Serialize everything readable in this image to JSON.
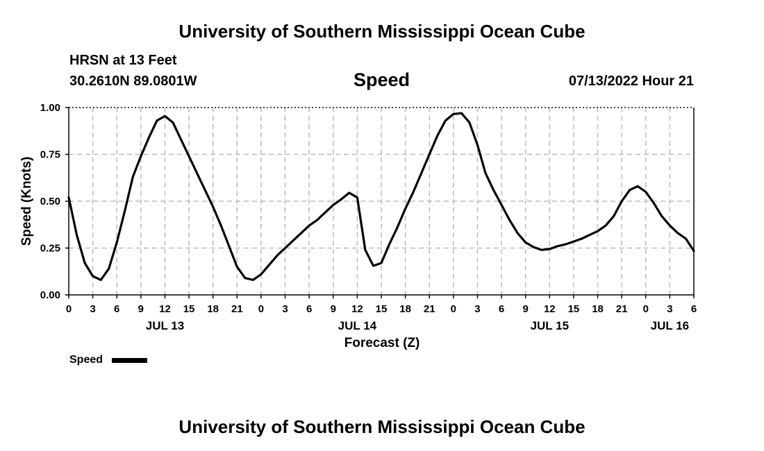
{
  "header": {
    "title": "University of Southern Mississippi Ocean Cube",
    "station": "HRSN at 13 Feet",
    "coords": "30.2610N  89.0801W",
    "chart_title": "Speed",
    "datetime": "07/13/2022 Hour 21"
  },
  "footer": {
    "title": "University of Southern Mississippi Ocean Cube"
  },
  "legend": {
    "label": "Speed",
    "position": "bottom-left"
  },
  "colors": {
    "line": "#000000",
    "grid": "#bbbbbb",
    "background": "#ffffff"
  },
  "chart_data": {
    "type": "line",
    "title": "Speed",
    "xlabel": "Forecast (Z)",
    "ylabel": "Speed (Knots)",
    "ylim": [
      0,
      1
    ],
    "xlim": [
      0,
      78
    ],
    "x_ticks": [
      0,
      3,
      6,
      9,
      12,
      15,
      18,
      21,
      24,
      27,
      30,
      33,
      36,
      39,
      42,
      45,
      48,
      51,
      54,
      57,
      60,
      63,
      66,
      69,
      72,
      75,
      78
    ],
    "x_tick_labels": [
      "0",
      "3",
      "6",
      "9",
      "12",
      "15",
      "18",
      "21",
      "0",
      "3",
      "6",
      "9",
      "12",
      "15",
      "18",
      "21",
      "0",
      "3",
      "6",
      "9",
      "12",
      "15",
      "18",
      "21",
      "0",
      "3",
      "6"
    ],
    "y_ticks": [
      0,
      0.25,
      0.5,
      0.75,
      1.0
    ],
    "y_tick_labels": [
      "0.00",
      "0.25",
      "0.50",
      "0.75",
      "1.00"
    ],
    "date_labels": [
      {
        "x": 12,
        "label": "JUL 13"
      },
      {
        "x": 36,
        "label": "JUL 14"
      },
      {
        "x": 60,
        "label": "JUL 15"
      },
      {
        "x": 75,
        "label": "JUL 16"
      }
    ],
    "grid": true,
    "series": [
      {
        "name": "Speed",
        "x": [
          0,
          1,
          2,
          3,
          4,
          5,
          6,
          7,
          8,
          9,
          10,
          11,
          12,
          13,
          14,
          15,
          16,
          17,
          18,
          19,
          20,
          21,
          22,
          23,
          24,
          25,
          26,
          27,
          28,
          29,
          30,
          31,
          32,
          33,
          34,
          35,
          36,
          37,
          38,
          39,
          40,
          41,
          42,
          43,
          44,
          45,
          46,
          47,
          48,
          49,
          50,
          51,
          52,
          53,
          54,
          55,
          56,
          57,
          58,
          59,
          60,
          61,
          62,
          63,
          64,
          65,
          66,
          67,
          68,
          69,
          70,
          71,
          72,
          73,
          74,
          75,
          76,
          77,
          78
        ],
        "values": [
          0.52,
          0.32,
          0.17,
          0.1,
          0.08,
          0.14,
          0.28,
          0.45,
          0.63,
          0.74,
          0.84,
          0.93,
          0.955,
          0.92,
          0.83,
          0.74,
          0.65,
          0.56,
          0.47,
          0.37,
          0.26,
          0.15,
          0.09,
          0.08,
          0.11,
          0.16,
          0.21,
          0.25,
          0.29,
          0.33,
          0.37,
          0.4,
          0.44,
          0.48,
          0.51,
          0.545,
          0.52,
          0.24,
          0.155,
          0.17,
          0.27,
          0.36,
          0.46,
          0.55,
          0.65,
          0.75,
          0.85,
          0.93,
          0.965,
          0.97,
          0.92,
          0.8,
          0.65,
          0.56,
          0.48,
          0.4,
          0.33,
          0.28,
          0.255,
          0.24,
          0.245,
          0.26,
          0.27,
          0.285,
          0.3,
          0.32,
          0.34,
          0.37,
          0.42,
          0.5,
          0.56,
          0.58,
          0.55,
          0.49,
          0.42,
          0.37,
          0.33,
          0.3,
          0.235
        ]
      }
    ]
  }
}
